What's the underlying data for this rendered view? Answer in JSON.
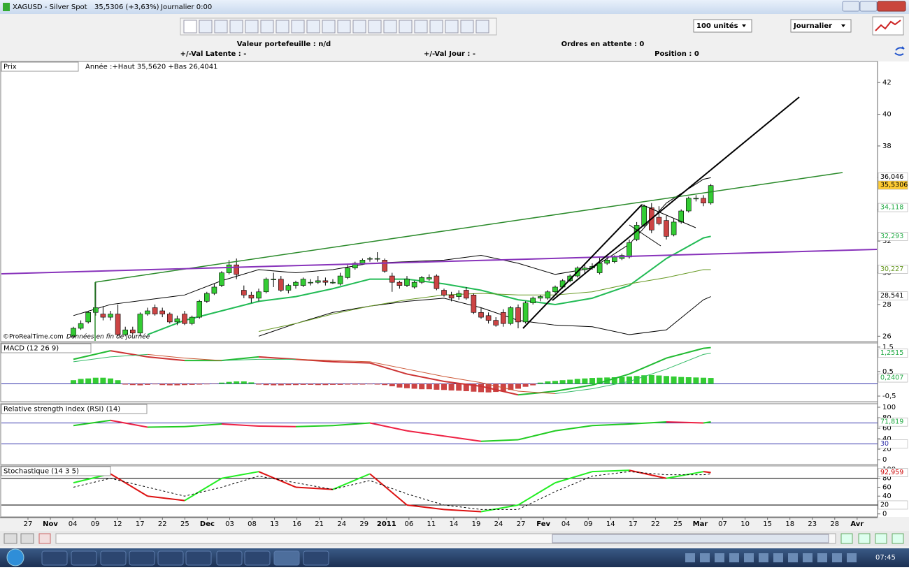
{
  "window": {
    "symbol": "XAGUSD - Silver Spot",
    "quote": "35,5306 (+3,63%)",
    "period": "Journalier 0:00"
  },
  "toolbar": {
    "quantity": "100 unités",
    "timeframe": "Journalier"
  },
  "info": {
    "portfolio": "Valeur portefeuille : n/d",
    "pending": "Ordres en attente : 0",
    "latent": "+/-Val Latente : -",
    "day": "+/-Val Jour : -",
    "position": "Position : 0"
  },
  "chart_data": [
    {
      "type": "candlestick",
      "title": "Prix",
      "subtitle": "Année :+Haut 35,5620 +Bas 26,4041",
      "up_color": "#33cc33",
      "down_color": "#cc4444",
      "candles": [
        [
          26.0,
          26.6,
          25.9,
          26.5
        ],
        [
          26.5,
          27.0,
          26.4,
          26.8
        ],
        [
          26.9,
          27.6,
          26.8,
          27.5
        ],
        [
          27.5,
          29.4,
          27.3,
          27.8
        ],
        [
          27.4,
          27.9,
          27.0,
          27.2
        ],
        [
          27.2,
          27.6,
          27.0,
          27.4
        ],
        [
          27.4,
          28.0,
          26.0,
          26.1
        ],
        [
          26.1,
          26.6,
          26.0,
          26.4
        ],
        [
          26.4,
          26.6,
          26.1,
          26.2
        ],
        [
          26.2,
          27.5,
          26.0,
          27.4
        ],
        [
          27.4,
          27.8,
          27.3,
          27.6
        ],
        [
          27.8,
          28.0,
          27.3,
          27.4
        ],
        [
          27.6,
          27.8,
          27.2,
          27.4
        ],
        [
          27.4,
          27.5,
          26.8,
          26.9
        ],
        [
          26.9,
          27.3,
          26.7,
          27.1
        ],
        [
          27.4,
          27.6,
          26.7,
          26.8
        ],
        [
          26.8,
          27.3,
          26.7,
          27.2
        ],
        [
          27.2,
          28.3,
          27.1,
          28.2
        ],
        [
          28.2,
          28.8,
          28.1,
          28.7
        ],
        [
          28.7,
          29.3,
          28.6,
          29.1
        ],
        [
          29.2,
          30.1,
          29.1,
          30.0
        ],
        [
          30.0,
          30.8,
          29.9,
          30.5
        ],
        [
          30.5,
          30.9,
          29.6,
          29.9
        ],
        [
          28.9,
          29.2,
          28.4,
          28.6
        ],
        [
          28.6,
          28.8,
          28.1,
          28.4
        ],
        [
          28.4,
          29.0,
          28.2,
          28.8
        ],
        [
          28.8,
          29.7,
          28.7,
          29.6
        ],
        [
          29.6,
          30.0,
          29.1,
          29.6
        ],
        [
          29.6,
          29.8,
          28.8,
          28.9
        ],
        [
          28.9,
          29.3,
          28.7,
          29.2
        ],
        [
          29.2,
          29.5,
          29.0,
          29.4
        ],
        [
          29.2,
          29.7,
          29.1,
          29.6
        ],
        [
          29.4,
          29.6,
          29.2,
          29.4
        ],
        [
          29.4,
          29.8,
          29.3,
          29.5
        ],
        [
          29.5,
          29.7,
          29.2,
          29.4
        ],
        [
          29.4,
          29.6,
          29.3,
          29.4
        ],
        [
          29.3,
          30.0,
          29.2,
          29.8
        ],
        [
          29.7,
          30.5,
          29.6,
          30.3
        ],
        [
          30.3,
          30.7,
          30.2,
          30.6
        ],
        [
          30.6,
          30.9,
          30.5,
          30.8
        ],
        [
          30.9,
          31.0,
          30.7,
          30.9
        ],
        [
          30.9,
          31.3,
          30.7,
          30.9
        ],
        [
          30.8,
          30.9,
          30.0,
          30.1
        ],
        [
          29.8,
          30.0,
          28.8,
          29.4
        ],
        [
          29.4,
          29.5,
          29.0,
          29.2
        ],
        [
          29.2,
          29.8,
          29.1,
          29.6
        ],
        [
          29.1,
          29.5,
          29.0,
          29.4
        ],
        [
          29.4,
          29.8,
          29.3,
          29.7
        ],
        [
          29.6,
          29.9,
          29.5,
          29.7
        ],
        [
          29.8,
          29.9,
          28.9,
          29.0
        ],
        [
          28.9,
          29.0,
          28.5,
          28.6
        ],
        [
          28.6,
          28.8,
          28.2,
          28.4
        ],
        [
          28.5,
          28.9,
          28.3,
          28.7
        ],
        [
          28.9,
          29.1,
          28.3,
          28.4
        ],
        [
          28.6,
          28.7,
          27.4,
          27.5
        ],
        [
          27.5,
          27.8,
          27.1,
          27.2
        ],
        [
          27.3,
          27.5,
          26.8,
          27.0
        ],
        [
          27.0,
          27.2,
          26.6,
          26.7
        ],
        [
          27.5,
          27.7,
          26.6,
          26.8
        ],
        [
          26.8,
          27.9,
          26.7,
          27.8
        ],
        [
          27.8,
          28.0,
          26.5,
          26.9
        ],
        [
          26.9,
          28.2,
          26.8,
          28.1
        ],
        [
          28.1,
          28.5,
          28.0,
          28.4
        ],
        [
          28.4,
          28.6,
          28.2,
          28.5
        ],
        [
          28.4,
          28.9,
          28.3,
          28.8
        ],
        [
          28.8,
          29.2,
          28.7,
          29.1
        ],
        [
          29.1,
          29.6,
          29.0,
          29.5
        ],
        [
          29.5,
          29.9,
          29.4,
          29.8
        ],
        [
          29.8,
          30.4,
          29.7,
          30.3
        ],
        [
          30.2,
          30.5,
          30.0,
          30.3
        ],
        [
          30.3,
          30.6,
          30.2,
          30.4
        ],
        [
          30.0,
          31.0,
          29.9,
          30.6
        ],
        [
          30.6,
          31.0,
          30.5,
          30.8
        ],
        [
          30.7,
          31.1,
          30.6,
          31.0
        ],
        [
          30.9,
          31.2,
          30.8,
          31.1
        ],
        [
          31.0,
          32.1,
          30.9,
          31.9
        ],
        [
          32.1,
          33.2,
          32.0,
          33.0
        ],
        [
          33.0,
          34.3,
          32.9,
          34.2
        ],
        [
          34.1,
          34.4,
          32.5,
          32.7
        ],
        [
          33.5,
          34.2,
          33.0,
          33.1
        ],
        [
          33.3,
          33.6,
          32.1,
          32.3
        ],
        [
          32.4,
          33.4,
          32.3,
          33.2
        ],
        [
          33.2,
          34.0,
          33.1,
          33.9
        ],
        [
          33.9,
          34.8,
          33.8,
          34.7
        ],
        [
          34.7,
          34.9,
          34.5,
          34.7
        ],
        [
          34.7,
          34.9,
          34.2,
          34.4
        ],
        [
          34.4,
          35.6,
          34.3,
          35.5
        ]
      ],
      "series": [
        {
          "color": "#000000",
          "width": 1,
          "values": [
            27.3,
            28.0,
            28.3,
            28.6,
            29.5,
            30.2,
            30.0,
            30.2,
            30.6,
            30.7,
            30.8,
            31.1,
            30.6,
            29.9,
            30.3,
            31.8,
            34.4,
            35.9,
            36.0
          ]
        },
        {
          "color": "#000000",
          "width": 1,
          "values": [
            null,
            null,
            null,
            null,
            null,
            26.0,
            26.8,
            27.5,
            27.9,
            28.2,
            28.4,
            27.8,
            27.0,
            26.7,
            26.6,
            26.1,
            26.4,
            28.3,
            28.5
          ]
        },
        {
          "color": "#22bb55",
          "width": 2,
          "values": [
            null,
            null,
            26.1,
            27.0,
            27.6,
            28.2,
            28.5,
            29.0,
            29.6,
            29.6,
            29.3,
            28.9,
            28.3,
            28.0,
            28.4,
            29.2,
            30.9,
            32.2,
            32.3
          ]
        },
        {
          "color": "#669922",
          "width": 1,
          "values": [
            null,
            null,
            null,
            null,
            null,
            26.3,
            26.8,
            27.4,
            27.9,
            28.3,
            28.6,
            28.7,
            28.6,
            28.6,
            28.8,
            29.3,
            29.7,
            30.2,
            30.2
          ]
        }
      ],
      "ylim": [
        25.75,
        42.8
      ],
      "yticks": [
        26,
        28,
        30,
        32,
        34,
        36,
        38,
        40,
        42
      ],
      "badges": [
        {
          "value": 36.046,
          "label": "36,046",
          "color": "#000000",
          "background": "#ffffff"
        },
        {
          "value": 35.5306,
          "label": "35,5306",
          "color": "#000000",
          "background": "#ffcc33"
        },
        {
          "value": 34.118,
          "label": "34,118",
          "color": "#22aa44",
          "background": "#ffffff"
        },
        {
          "value": 32.293,
          "label": "32,293",
          "color": "#22aa44",
          "background": "#ffffff"
        },
        {
          "value": 30.227,
          "label": "30,227",
          "color": "#669922",
          "background": "#ffffff"
        },
        {
          "value": 28.541,
          "label": "28,541",
          "color": "#000000",
          "background": "#ffffff"
        }
      ]
    },
    {
      "type": "line",
      "title": "MACD (12 26 9)",
      "series": [
        {
          "color": "#22bb33",
          "down_color": "#cc3333",
          "width": 2,
          "values": [
            1.0,
            1.35,
            1.1,
            0.95,
            0.95,
            1.1,
            1.0,
            0.9,
            0.85,
            0.4,
            0.1,
            -0.1,
            -0.45,
            -0.3,
            -0.05,
            0.4,
            1.05,
            1.45,
            1.48
          ]
        },
        {
          "color": "#33bb66",
          "down_color": "#cc5533",
          "width": 1,
          "values": [
            0.9,
            1.1,
            1.2,
            1.05,
            0.95,
            1.0,
            1.0,
            0.95,
            0.9,
            0.6,
            0.3,
            0.05,
            -0.3,
            -0.4,
            -0.2,
            0.1,
            0.6,
            1.2,
            1.25
          ]
        }
      ],
      "histogram": {
        "up_color": "#33cc33",
        "down_color": "#cc4444",
        "values": [
          0.15,
          0.2,
          0.22,
          0.25,
          0.25,
          0.22,
          0.15,
          -0.03,
          -0.05,
          -0.06,
          -0.04,
          -0.02,
          -0.05,
          -0.06,
          -0.06,
          -0.05,
          -0.04,
          -0.03,
          -0.02,
          -0.01,
          0.05,
          0.08,
          0.1,
          0.1,
          0.06,
          -0.03,
          -0.05,
          -0.06,
          -0.06,
          -0.05,
          -0.05,
          -0.04,
          -0.04,
          -0.05,
          -0.05,
          -0.04,
          -0.04,
          -0.03,
          -0.03,
          -0.03,
          -0.02,
          -0.03,
          -0.05,
          -0.1,
          -0.15,
          -0.18,
          -0.2,
          -0.22,
          -0.22,
          -0.24,
          -0.25,
          -0.27,
          -0.28,
          -0.3,
          -0.32,
          -0.34,
          -0.35,
          -0.33,
          -0.3,
          -0.25,
          -0.2,
          -0.12,
          -0.06,
          0.05,
          0.1,
          0.12,
          0.15,
          0.17,
          0.2,
          0.22,
          0.24,
          0.25,
          0.26,
          0.27,
          0.28,
          0.3,
          0.32,
          0.35,
          0.36,
          0.34,
          0.32,
          0.3,
          0.28,
          0.27,
          0.26,
          0.25,
          0.24
        ]
      },
      "levels": [
        {
          "value": 0,
          "color": "#3333aa"
        }
      ],
      "ylim": [
        -0.67,
        1.61
      ],
      "yticks": [
        {
          "value": 1.5,
          "label": "1,5"
        },
        {
          "value": 0.5,
          "label": "0,5"
        },
        {
          "value": -0.5,
          "label": "-0,5"
        }
      ],
      "badges": [
        {
          "value": 1.2515,
          "label": "1,2515",
          "color": "#22aa44",
          "background": "#ffffff"
        },
        {
          "value": 0.2407,
          "label": "0,2407",
          "color": "#22aa44",
          "background": "#ffffff"
        }
      ]
    },
    {
      "type": "line",
      "title": "Relative strength index (RSI) (14)",
      "series": [
        {
          "color": "#22cc22",
          "down_color": "#ee2244",
          "width": 2,
          "values": [
            65,
            75,
            62,
            63,
            68,
            64,
            63,
            65,
            70,
            55,
            45,
            35,
            38,
            55,
            65,
            68,
            72,
            70,
            72
          ]
        }
      ],
      "levels": [
        {
          "value": 70,
          "color": "#3333aa"
        },
        {
          "value": 30,
          "color": "#3333aa"
        }
      ],
      "ylim": [
        -5.3,
        104
      ],
      "yticks": [
        0,
        20,
        40,
        60,
        80,
        100
      ],
      "badges": [
        {
          "value": 71.819,
          "label": "71,819",
          "color": "#22aa44",
          "background": "#ffffff"
        },
        {
          "value": 30,
          "label": "30",
          "color": "#3333aa",
          "background": "#ffffff"
        }
      ]
    },
    {
      "type": "line",
      "title": "Stochastique (14 3 5)",
      "series": [
        {
          "color": "#22ee22",
          "down_color": "#dd1111",
          "width": 2,
          "values": [
            70,
            90,
            40,
            30,
            80,
            95,
            60,
            55,
            90,
            20,
            10,
            5,
            20,
            70,
            95,
            98,
            80,
            95,
            93
          ]
        },
        {
          "color": "#000000",
          "width": 1,
          "dashed": true,
          "values": [
            60,
            80,
            60,
            40,
            60,
            85,
            70,
            55,
            75,
            45,
            20,
            10,
            10,
            50,
            85,
            95,
            88,
            88,
            90
          ]
        }
      ],
      "levels": [
        {
          "value": 80,
          "color": "#000000"
        },
        {
          "value": 20,
          "color": "#000000"
        }
      ],
      "ylim": [
        -3.6,
        104.7
      ],
      "yticks": [
        0,
        20,
        40,
        60,
        80,
        100
      ],
      "badges": [
        {
          "value": 92.959,
          "label": "92,959",
          "color": "#cc0000",
          "background": "#ffffff"
        },
        {
          "value": 20,
          "label": "20",
          "color": "#000000",
          "background": "#ffffff"
        }
      ]
    }
  ],
  "x_axis_labels": [
    "27",
    "Nov",
    "04",
    "09",
    "12",
    "17",
    "22",
    "25",
    "Dec",
    "03",
    "08",
    "13",
    "16",
    "21",
    "24",
    "29",
    "2011",
    "06",
    "11",
    "14",
    "19",
    "24",
    "27",
    "Fev",
    "04",
    "09",
    "14",
    "17",
    "22",
    "25",
    "Mar",
    "07",
    "10",
    "15",
    "18",
    "23",
    "28",
    "Avr"
  ],
  "footer": {
    "watermark": "©ProRealTime.com",
    "note": "Données en fin de journée"
  },
  "taskbar": {
    "clock": "07:45"
  }
}
